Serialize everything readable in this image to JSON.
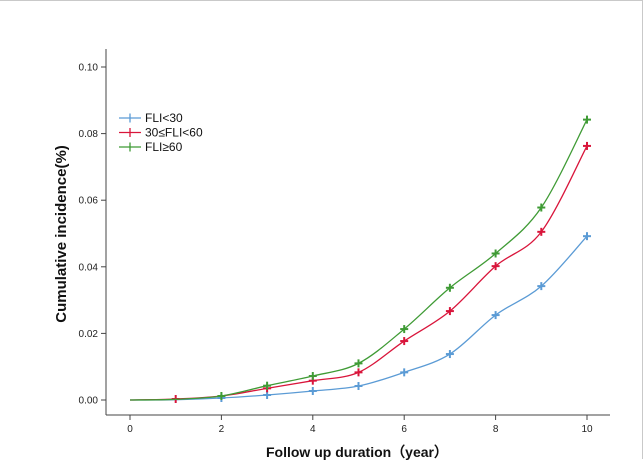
{
  "chart_data": {
    "type": "line",
    "xlabel": "Follow up duration（year）",
    "ylabel": "Cumulative incidence(%)",
    "xlim": [
      0,
      10
    ],
    "ylim": [
      0,
      0.1
    ],
    "x_ticks": [
      "0",
      "2",
      "4",
      "6",
      "8",
      "10"
    ],
    "y_ticks": [
      "0.00",
      "0.02",
      "0.04",
      "0.06",
      "0.08",
      "0.10"
    ],
    "legend_position": "top-left",
    "grid": false,
    "series": [
      {
        "name": "FLI<30",
        "color": "#5b9bd5",
        "points": [
          [
            0,
            0.0
          ],
          [
            1,
            0.0001
          ],
          [
            2,
            0.0006
          ],
          [
            3,
            0.0015
          ],
          [
            4,
            0.0027
          ],
          [
            5,
            0.0042
          ],
          [
            6,
            0.0083
          ],
          [
            7,
            0.0138
          ],
          [
            8,
            0.0255
          ],
          [
            9,
            0.0342
          ],
          [
            10,
            0.0492
          ]
        ],
        "markers_x": [
          2,
          3,
          4,
          5,
          6,
          7,
          8,
          9,
          10
        ]
      },
      {
        "name": "30≤FLI<60",
        "color": "#d9153b",
        "points": [
          [
            0,
            0.0
          ],
          [
            1,
            0.0003
          ],
          [
            2,
            0.0012
          ],
          [
            3,
            0.0035
          ],
          [
            4,
            0.0058
          ],
          [
            5,
            0.0083
          ],
          [
            6,
            0.0177
          ],
          [
            7,
            0.0267
          ],
          [
            8,
            0.0402
          ],
          [
            9,
            0.0505
          ],
          [
            10,
            0.0763
          ]
        ],
        "markers_x": [
          1,
          3,
          4,
          5,
          6,
          7,
          8,
          9,
          10
        ]
      },
      {
        "name": "FLI≥60",
        "color": "#3f9b35",
        "points": [
          [
            0,
            0.0
          ],
          [
            1,
            0.0002
          ],
          [
            2,
            0.0012
          ],
          [
            3,
            0.0043
          ],
          [
            4,
            0.0072
          ],
          [
            5,
            0.011
          ],
          [
            6,
            0.0213
          ],
          [
            7,
            0.0337
          ],
          [
            8,
            0.044
          ],
          [
            9,
            0.0578
          ],
          [
            10,
            0.0842
          ]
        ],
        "markers_x": [
          2,
          3,
          4,
          5,
          6,
          7,
          8,
          9,
          10
        ]
      }
    ]
  }
}
